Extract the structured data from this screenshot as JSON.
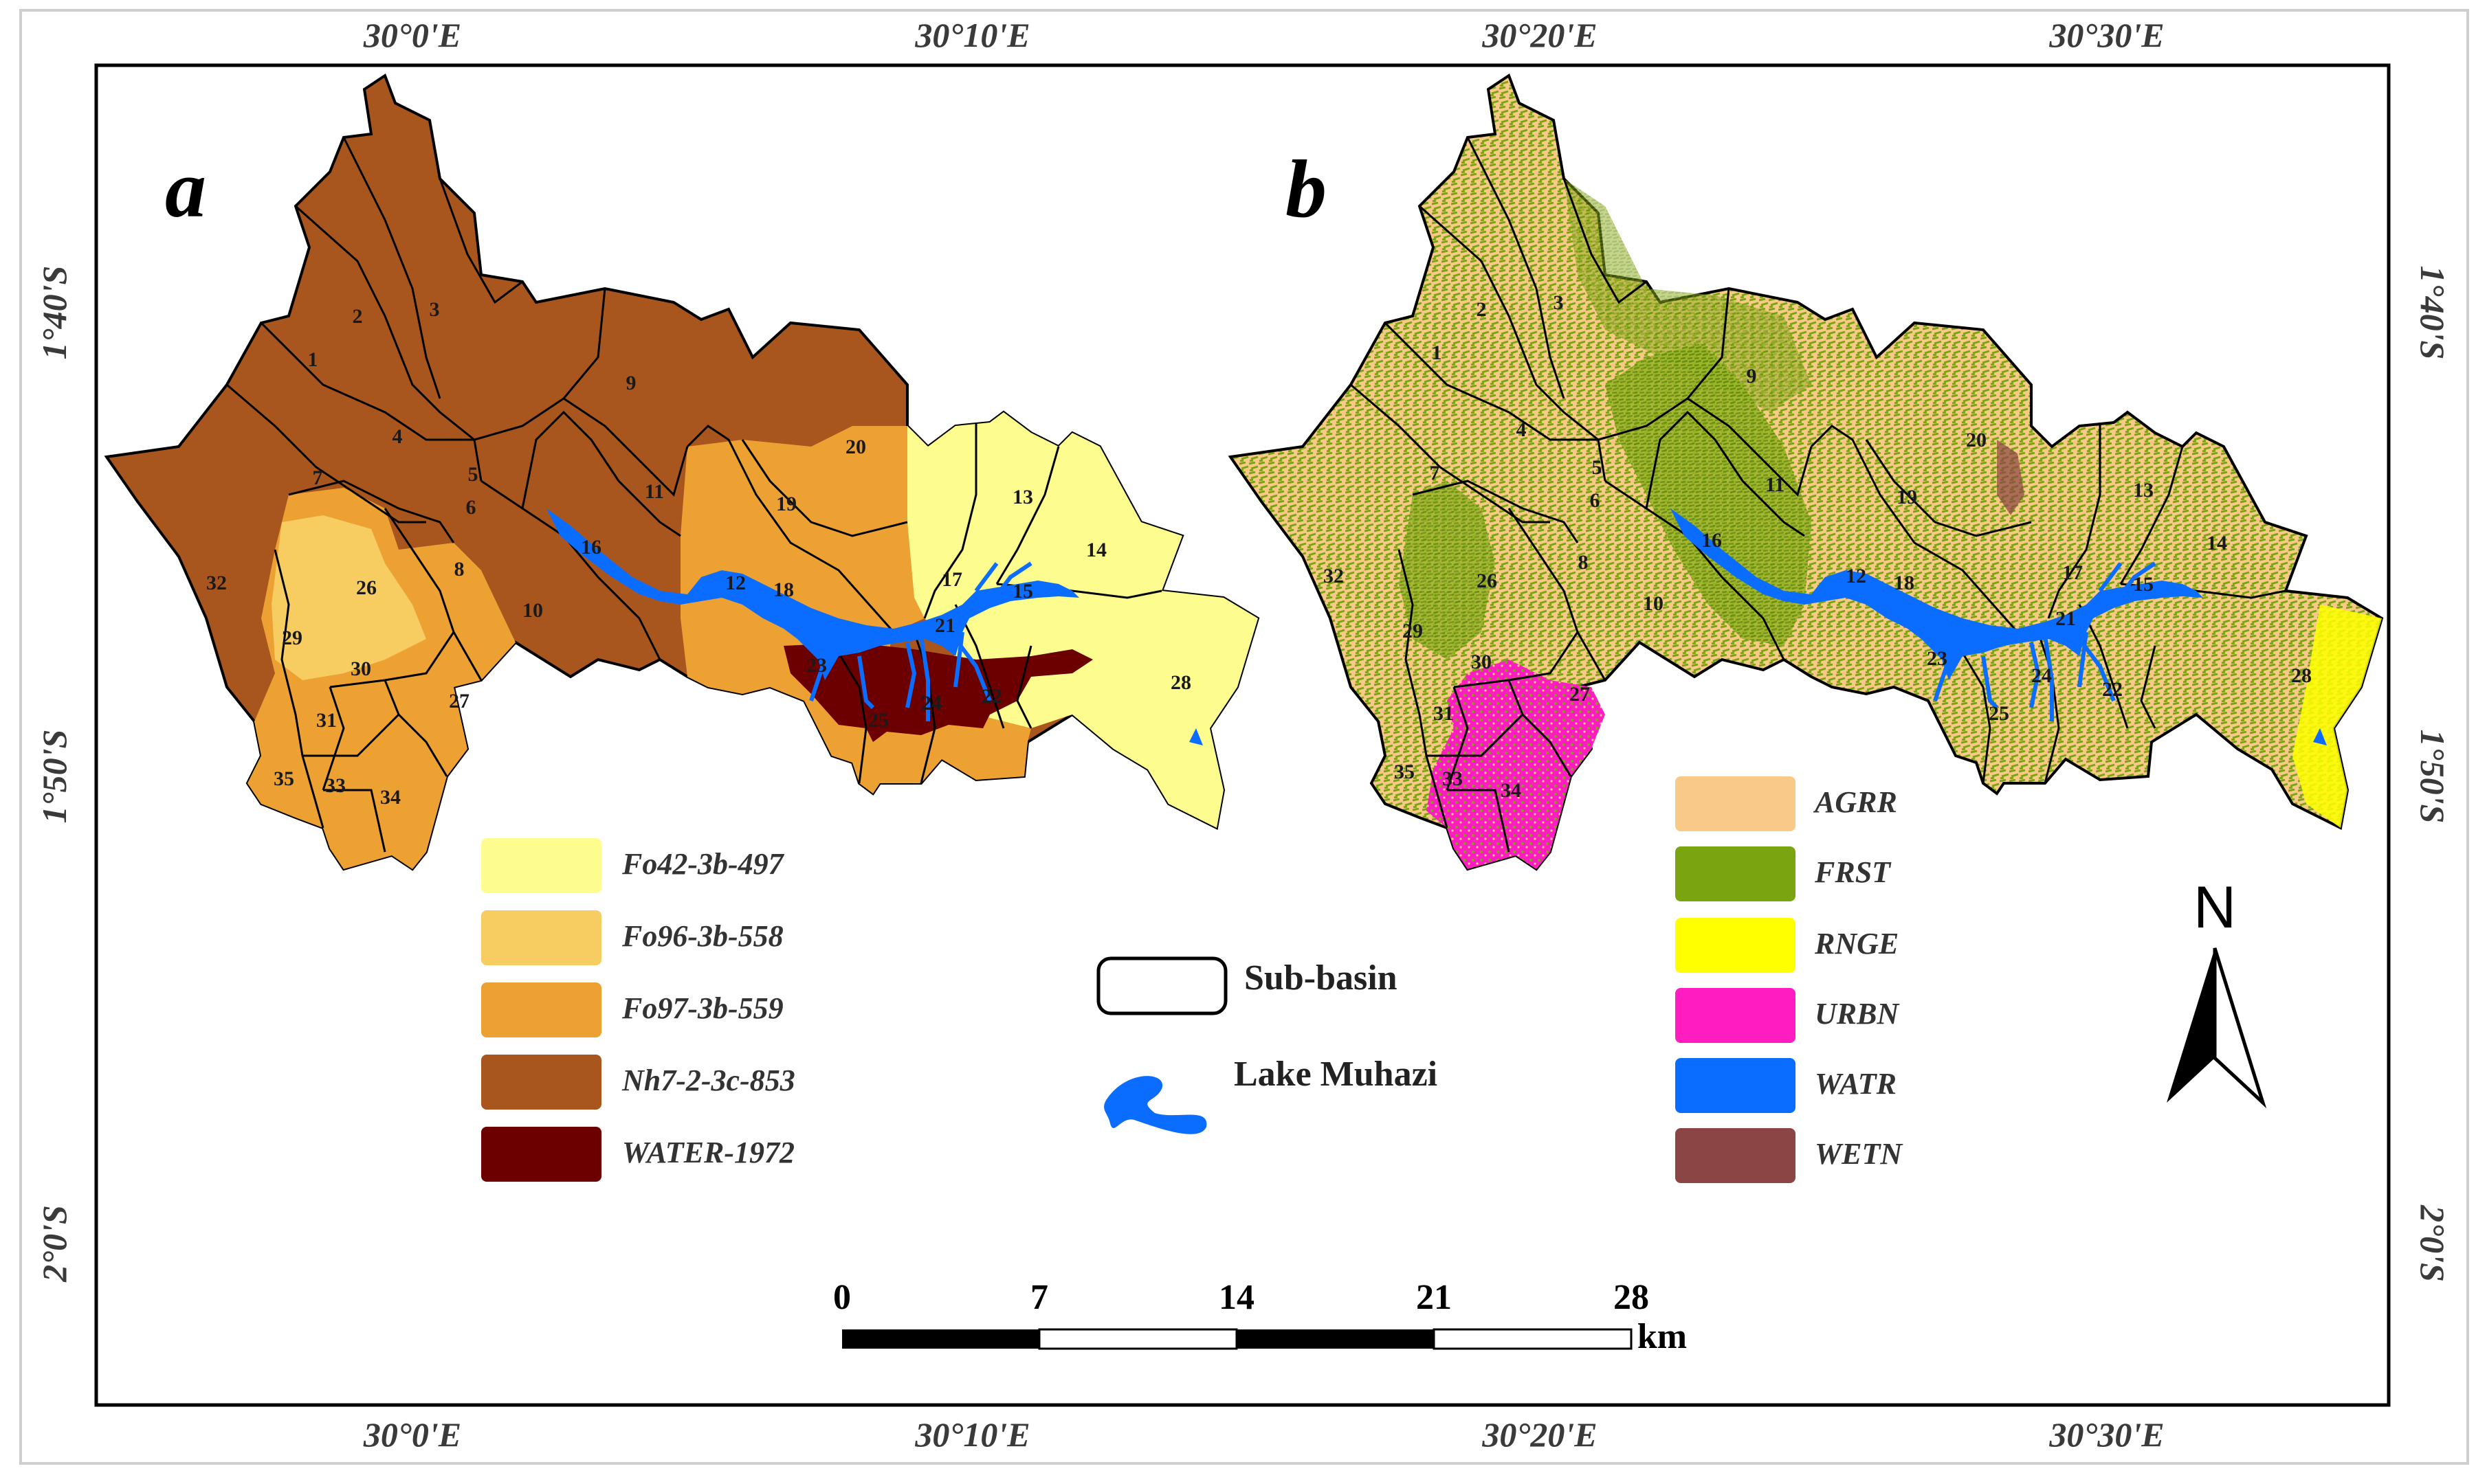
{
  "panels": {
    "a_label": "a",
    "b_label": "b"
  },
  "coords": {
    "top": [
      "30°0'E",
      "30°10'E",
      "30°20'E",
      "30°30'E"
    ],
    "bottom": [
      "30°0'E",
      "30°10'E",
      "30°20'E",
      "30°30'E"
    ],
    "left": [
      "1°40'S",
      "1°50'S",
      "2°0'S"
    ],
    "right": [
      "1°40'S",
      "1°50'S",
      "2°0'S"
    ]
  },
  "subbasins": [
    "1",
    "2",
    "3",
    "4",
    "5",
    "6",
    "7",
    "8",
    "9",
    "10",
    "11",
    "12",
    "13",
    "14",
    "15",
    "16",
    "17",
    "18",
    "19",
    "20",
    "21",
    "22",
    "23",
    "24",
    "25",
    "26",
    "27",
    "28",
    "29",
    "30",
    "31",
    "32",
    "33",
    "34",
    "35"
  ],
  "soil_legend": [
    {
      "label": "Fo42-3b-497",
      "color": "#fdfc8e"
    },
    {
      "label": "Fo96-3b-558",
      "color": "#f7cd62"
    },
    {
      "label": "Fo97-3b-559",
      "color": "#eda133"
    },
    {
      "label": "Nh7-2-3c-853",
      "color": "#a8561d"
    },
    {
      "label": "WATER-1972",
      "color": "#6c0000"
    }
  ],
  "landuse_legend": [
    {
      "label": "AGRR",
      "color": "#f9c987"
    },
    {
      "label": "FRST",
      "color": "#7aa511"
    },
    {
      "label": "RNGE",
      "color": "#ffff00"
    },
    {
      "label": "URBN",
      "color": "#ff1cc0"
    },
    {
      "label": "WATR",
      "color": "#0a6dff"
    },
    {
      "label": "WETN",
      "color": "#8b4545"
    }
  ],
  "center_legend": {
    "subbasin": "Sub-basin",
    "lake": "Lake Muhazi"
  },
  "scale_bar": {
    "ticks": [
      "0",
      "7",
      "14",
      "21",
      "28"
    ],
    "unit": "km"
  },
  "north_arrow": {
    "label": "N"
  }
}
